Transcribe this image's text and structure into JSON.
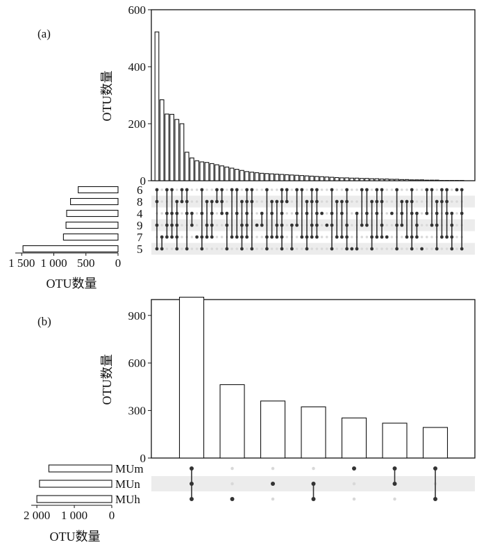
{
  "chart_data": [
    {
      "panel_label": "(a)",
      "type": "bar",
      "subtype": "upset",
      "ylabel": "OTU数量",
      "ylim": [
        0,
        600
      ],
      "yticks": [
        "0",
        "200",
        "400",
        "600"
      ],
      "values": [
        522,
        284,
        234,
        233,
        215,
        200,
        100,
        80,
        70,
        66,
        64,
        60,
        56,
        52,
        48,
        44,
        40,
        36,
        32,
        30,
        28,
        26,
        25,
        24,
        23,
        22,
        21,
        20,
        19,
        18,
        17,
        16,
        15,
        14,
        13,
        12,
        11,
        10,
        10,
        9,
        9,
        8,
        8,
        7,
        7,
        6,
        6,
        5,
        5,
        4,
        4,
        3,
        3,
        3,
        2,
        2,
        2,
        1,
        1,
        1,
        1,
        1
      ],
      "sets": [
        "6",
        "8",
        "4",
        "9",
        "7",
        "5"
      ],
      "set_sizes": [
        620,
        740,
        800,
        810,
        850,
        1480
      ],
      "set_xlabel": "OTU数量",
      "set_xticks": [
        "1 500",
        "1 000",
        "500",
        "0"
      ],
      "set_xlim": [
        1600,
        0
      ]
    },
    {
      "panel_label": "(b)",
      "type": "bar",
      "subtype": "upset",
      "ylabel": "OTU数量",
      "ylim": [
        0,
        1000
      ],
      "yticks": [
        "0",
        "300",
        "600",
        "900"
      ],
      "values": [
        1015,
        463,
        360,
        323,
        253,
        220,
        193
      ],
      "sets": [
        "MUm",
        "MUn",
        "MUh"
      ],
      "set_sizes": [
        1680,
        1930,
        2000
      ],
      "set_xlabel": "OTU数量",
      "set_xticks": [
        "2 000",
        "1 000",
        "0"
      ],
      "set_xlim": [
        2150,
        0
      ],
      "intersections": [
        [
          0,
          1,
          2
        ],
        [
          2
        ],
        [
          1
        ],
        [
          1,
          2
        ],
        [
          0
        ],
        [
          0,
          1
        ],
        [
          0,
          2
        ]
      ]
    }
  ]
}
